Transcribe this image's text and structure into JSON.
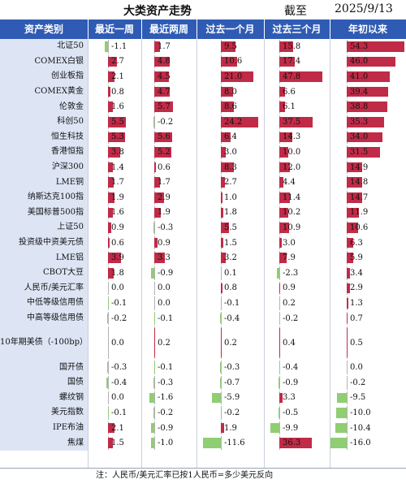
{
  "title": "大类资产走势",
  "asof_label": "截至",
  "date": "2025/9/13",
  "headers": [
    "资产类别",
    "最近一周",
    "最近两周",
    "过去一个月",
    "过去三个月",
    "年初以来"
  ],
  "colors": {
    "header_bg": "#2f5bb5",
    "category_bg": "#dde5f5",
    "positive": "#c02b47",
    "negative": "#8fce72"
  },
  "footnote": "注：人民币/美元汇率已按1人民币=多少美元反向",
  "chart_data": {
    "type": "table",
    "title": "大类资产走势",
    "columns": [
      "最近一周",
      "最近两周",
      "过去一个月",
      "过去三个月",
      "年初以来"
    ],
    "unit": "%",
    "rows": [
      {
        "name": "北证50",
        "values": [
          -1.1,
          1.7,
          9.5,
          15.8,
          54.3
        ],
        "labels": [
          "-1.1",
          "1.7",
          "9.5",
          "15.8",
          "54.3"
        ]
      },
      {
        "name": "COMEX白银",
        "values": [
          2.7,
          4.8,
          10.6,
          17.4,
          46.0
        ],
        "labels": [
          "2.7",
          "4.8",
          "10.6",
          "17.4",
          "46.0"
        ]
      },
      {
        "name": "创业板指",
        "values": [
          2.1,
          4.5,
          21.0,
          47.8,
          41.0
        ],
        "labels": [
          "2.1",
          "4.5",
          "21.0",
          "47.8",
          "41.0"
        ]
      },
      {
        "name": "COMEX黄金",
        "values": [
          0.8,
          4.7,
          8.0,
          6.6,
          39.4
        ],
        "labels": [
          "0.8",
          "4.7",
          "8.0",
          "6.6",
          "39.4"
        ]
      },
      {
        "name": "伦敦金",
        "values": [
          1.6,
          5.7,
          8.6,
          6.1,
          38.8
        ],
        "labels": [
          "1.6",
          "5.7",
          "8.6",
          "6.1",
          "38.8"
        ]
      },
      {
        "name": "科创50",
        "values": [
          5.5,
          -0.2,
          24.2,
          37.5,
          35.3
        ],
        "labels": [
          "5.5",
          "-0.2",
          "24.2",
          "37.5",
          "35.3"
        ]
      },
      {
        "name": "恒生科技",
        "values": [
          5.3,
          5.6,
          6.4,
          14.3,
          34.0
        ],
        "labels": [
          "5.3",
          "5.6",
          "6.4",
          "14.3",
          "34.0"
        ]
      },
      {
        "name": "香港恒指",
        "values": [
          3.8,
          5.2,
          3.0,
          10.0,
          31.5
        ],
        "labels": [
          "3.8",
          "5.2",
          "3.0",
          "10.0",
          "31.5"
        ]
      },
      {
        "name": "沪深300",
        "values": [
          1.4,
          0.6,
          8.3,
          12.0,
          14.9
        ],
        "labels": [
          "1.4",
          "0.6",
          "8.3",
          "12.0",
          "14.9"
        ]
      },
      {
        "name": "LME铜",
        "values": [
          1.7,
          1.7,
          2.7,
          4.4,
          14.8
        ],
        "labels": [
          "1.7",
          "1.7",
          "2.7",
          "4.4",
          "14.8"
        ]
      },
      {
        "name": "纳斯达克100指",
        "values": [
          1.9,
          2.9,
          1.0,
          11.4,
          14.7
        ],
        "labels": [
          "1.9",
          "2.9",
          "1.0",
          "11.4",
          "14.7"
        ]
      },
      {
        "name": "美国标普500指",
        "values": [
          1.6,
          1.9,
          1.8,
          10.2,
          11.9
        ],
        "labels": [
          "1.6",
          "1.9",
          "1.8",
          "10.2",
          "11.9"
        ]
      },
      {
        "name": "上证50",
        "values": [
          0.9,
          -0.3,
          5.5,
          10.9,
          10.6
        ],
        "labels": [
          "0.9",
          "-0.3",
          "5.5",
          "10.9",
          "10.6"
        ]
      },
      {
        "name": "投资级中资美元债",
        "values": [
          0.6,
          0.9,
          1.5,
          3.0,
          6.3
        ],
        "labels": [
          "0.6",
          "0.9",
          "1.5",
          "3.0",
          "6.3"
        ]
      },
      {
        "name": "LME铝",
        "values": [
          3.9,
          3.3,
          3.2,
          7.9,
          5.9
        ],
        "labels": [
          "3.9",
          "3.3",
          "3.2",
          "7.9",
          "5.9"
        ]
      },
      {
        "name": "CBOT大豆",
        "values": [
          1.8,
          -0.9,
          0.1,
          -2.3,
          3.4
        ],
        "labels": [
          "1.8",
          "-0.9",
          "0.1",
          "-2.3",
          "3.4"
        ]
      },
      {
        "name": "人民币/美元汇率",
        "values": [
          0.0,
          0.0,
          0.8,
          0.9,
          2.9
        ],
        "labels": [
          "0.0",
          "0.0",
          "0.8",
          "0.9",
          "2.9"
        ]
      },
      {
        "name": "中低等级信用债",
        "values": [
          -0.1,
          0.0,
          -0.1,
          0.2,
          1.3
        ],
        "labels": [
          "-0.1",
          "0.0",
          "-0.1",
          "0.2",
          "1.3"
        ]
      },
      {
        "name": "中高等级信用债",
        "values": [
          -0.2,
          -0.1,
          -0.4,
          -0.2,
          0.7
        ],
        "labels": [
          "-0.2",
          "-0.1",
          "-0.4",
          "-0.2",
          "0.7"
        ]
      },
      {
        "name": "10年期美债（-100bp）",
        "values": [
          0.0,
          0.2,
          0.2,
          0.4,
          0.5
        ],
        "labels": [
          "0.0",
          "0.2",
          "0.2",
          "0.4",
          "0.5"
        ]
      },
      {
        "name": "国开债",
        "values": [
          -0.3,
          -0.1,
          -0.3,
          -0.4,
          0.0
        ],
        "labels": [
          "-0.3",
          "-0.1",
          "-0.3",
          "-0.4",
          "0.0"
        ]
      },
      {
        "name": "国债",
        "values": [
          -0.4,
          -0.3,
          -0.7,
          -0.9,
          -0.2
        ],
        "labels": [
          "-0.4",
          "-0.3",
          "-0.7",
          "-0.9",
          "-0.2"
        ]
      },
      {
        "name": "螺纹钢",
        "values": [
          0.0,
          -1.6,
          -5.9,
          3.3,
          -9.5
        ],
        "labels": [
          "0.0",
          "-1.6",
          "-5.9",
          "3.3",
          "-9.5"
        ]
      },
      {
        "name": "美元指数",
        "values": [
          -0.1,
          -0.2,
          -0.2,
          -0.5,
          -10.0
        ],
        "labels": [
          "-0.1",
          "-0.2",
          "-0.2",
          "-0.5",
          "-10.0"
        ]
      },
      {
        "name": "IPE布油",
        "values": [
          2.1,
          -0.9,
          1.9,
          -9.9,
          -10.4
        ],
        "labels": [
          "2.1",
          "-0.9",
          "1.9",
          "-9.9",
          "-10.4"
        ]
      },
      {
        "name": "焦煤",
        "values": [
          1.5,
          -1.0,
          -11.6,
          36.3,
          -16.0
        ],
        "labels": [
          "1.5",
          "-1.0",
          "-11.6",
          "36.3",
          "-16.0"
        ]
      }
    ]
  }
}
